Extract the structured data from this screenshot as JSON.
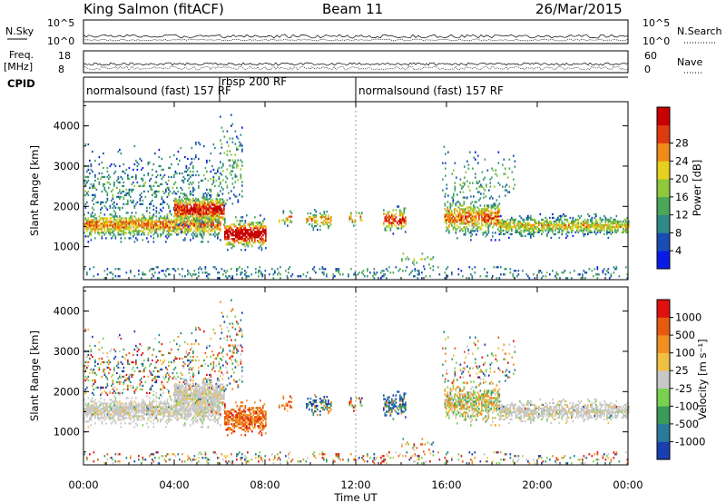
{
  "header": {
    "station": "King Salmon (fitACF)",
    "beam": "Beam 11",
    "date": "26/Mar/2015"
  },
  "params": {
    "nsky_label": "N.Sky",
    "nsky_ticks": [
      "10^5",
      "10^0"
    ],
    "nsearch_label": "N.Search",
    "nsearch_ticks": [
      "10^5",
      "10^0"
    ],
    "freq_label": "Freq.",
    "freq_unit": "[MHz]",
    "freq_ticks": [
      18,
      8
    ],
    "nave_label": "Nave",
    "nave_ticks": [
      60,
      0
    ],
    "cpid_label": "CPID"
  },
  "cpid_segments": [
    {
      "label": "normalsound (fast) 157 RF",
      "start_ut": 0.0,
      "end_ut": 6.0
    },
    {
      "label": "rbsp 200 RF",
      "start_ut": 6.0,
      "end_ut": 12.0
    },
    {
      "label": "normalsound (fast) 157 RF",
      "start_ut": 12.0,
      "end_ut": 24.0
    }
  ],
  "chart_data": [
    {
      "type": "heatmap",
      "name": "power",
      "xlabel": "Time UT",
      "ylabel": "Slant Range [km]",
      "xlim": [
        0,
        24
      ],
      "ylim": [
        180,
        4600
      ],
      "x_ticks": [
        "00:00",
        "04:00",
        "08:00",
        "12:00",
        "16:00",
        "20:00",
        "00:00"
      ],
      "y_ticks": [
        1000,
        2000,
        3000,
        4000
      ],
      "colorbar": {
        "label": "Power [dB]",
        "ticks": [
          "4",
          "8",
          "12",
          "16",
          "20",
          "24",
          "28"
        ],
        "colors": [
          "#0a1be8",
          "#1a4db4",
          "#2e8a86",
          "#48a758",
          "#8fc83a",
          "#e6d020",
          "#f08a18",
          "#e03a10",
          "#c80000"
        ]
      }
    },
    {
      "type": "heatmap",
      "name": "velocity",
      "xlabel": "Time UT",
      "ylabel": "Slant Range [km]",
      "xlim": [
        0,
        24
      ],
      "ylim": [
        180,
        4600
      ],
      "x_ticks": [
        "00:00",
        "04:00",
        "08:00",
        "12:00",
        "16:00",
        "20:00",
        "00:00"
      ],
      "y_ticks": [
        1000,
        2000,
        3000,
        4000
      ],
      "colorbar": {
        "label": "Velocity [m s⁻¹]",
        "ticks": [
          "1000",
          "500",
          "100",
          "25",
          "-25",
          "-100",
          "-500",
          "-1000"
        ],
        "colors": [
          "#1a3fb0",
          "#2a7a9a",
          "#3a9a5a",
          "#7ad050",
          "#c8c8c8",
          "#f0c040",
          "#f09020",
          "#e85a10",
          "#e01010"
        ]
      }
    }
  ]
}
